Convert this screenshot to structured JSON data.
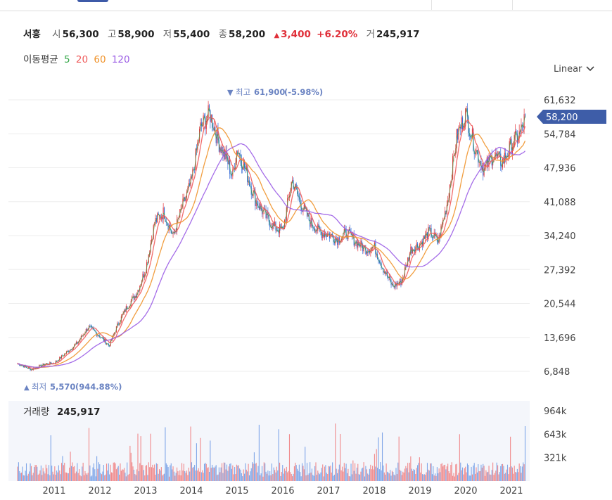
{
  "stock": {
    "name": "서흥",
    "open_label": "시",
    "open": "56,300",
    "high_label": "고",
    "high": "58,900",
    "low_label": "저",
    "low": "55,400",
    "close_label": "종",
    "close": "58,200",
    "change": "3,400",
    "change_pct": "+6.20%",
    "volume_label": "거",
    "volume": "245,917"
  },
  "moving_average": {
    "label": "이동평균",
    "periods": [
      {
        "label": "5",
        "color": "#36a84a"
      },
      {
        "label": "20",
        "color": "#ef5b5b"
      },
      {
        "label": "60",
        "color": "#f0932b"
      },
      {
        "label": "120",
        "color": "#9b5de5"
      }
    ]
  },
  "scale_selector": {
    "label": "Linear"
  },
  "chart_data": {
    "type": "line",
    "description": "Stock price candlestick chart with moving averages and volume",
    "x": [
      2010.2,
      2010.5,
      2010.8,
      2011.0,
      2011.25,
      2011.5,
      2011.75,
      2012.0,
      2012.2,
      2012.4,
      2012.6,
      2012.8,
      2013.0,
      2013.2,
      2013.4,
      2013.6,
      2013.8,
      2014.0,
      2014.2,
      2014.4,
      2014.6,
      2014.8,
      2014.9,
      2015.0,
      2015.2,
      2015.4,
      2015.6,
      2015.8,
      2016.0,
      2016.2,
      2016.4,
      2016.6,
      2016.8,
      2017.0,
      2017.2,
      2017.4,
      2017.6,
      2017.8,
      2018.0,
      2018.2,
      2018.4,
      2018.6,
      2018.8,
      2019.0,
      2019.2,
      2019.4,
      2019.6,
      2019.8,
      2020.0,
      2020.2,
      2020.4,
      2020.6,
      2020.8,
      2021.0,
      2021.2,
      2021.3
    ],
    "close": [
      8400,
      7200,
      8300,
      8500,
      10500,
      12500,
      15800,
      14000,
      12000,
      16500,
      20000,
      22500,
      27500,
      37000,
      39000,
      34000,
      40000,
      45000,
      56000,
      59000,
      53000,
      49000,
      46000,
      52000,
      47000,
      41500,
      38500,
      36000,
      35200,
      45500,
      40500,
      37000,
      35000,
      34500,
      33500,
      34800,
      33000,
      31500,
      32000,
      27500,
      24000,
      25000,
      31500,
      32500,
      35000,
      33000,
      41000,
      54000,
      59000,
      52000,
      47500,
      50500,
      49000,
      52500,
      55000,
      58200
    ],
    "series": [
      {
        "name": "5",
        "color": "#36a84a"
      },
      {
        "name": "20",
        "color": "#ef5b5b"
      },
      {
        "name": "60",
        "color": "#f0932b"
      },
      {
        "name": "120",
        "color": "#9b5de5"
      }
    ],
    "ylim": [
      6848,
      61632
    ],
    "y_ticks": [
      "61,632",
      "54,784",
      "47,936",
      "41,088",
      "34,240",
      "27,392",
      "20,544",
      "13,696",
      "6,848"
    ],
    "x_ticks": [
      "2011",
      "2012",
      "2013",
      "2014",
      "2015",
      "2016",
      "2017",
      "2018",
      "2019",
      "2020",
      "2021"
    ],
    "current_price_label": "58,200",
    "high_annotation": {
      "label": "최고",
      "value": "61,900",
      "pct": "(-5.98%)"
    },
    "low_annotation": {
      "label": "최저",
      "value": "5,570",
      "pct": "(944.88%)"
    },
    "volume": {
      "label": "거래량",
      "value": "245,917",
      "y_ticks": [
        "964k",
        "643k",
        "321k"
      ]
    },
    "grid": true
  }
}
